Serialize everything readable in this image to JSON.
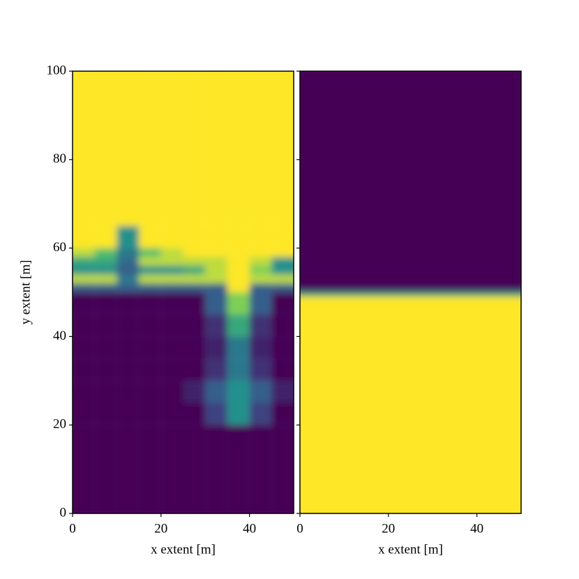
{
  "chart_data": [
    {
      "type": "heatmap",
      "xlabel": "x extent [m]",
      "ylabel": "y extent [m]",
      "xlim": [
        0,
        50
      ],
      "ylim": [
        0,
        100
      ],
      "xticks": [
        0,
        20,
        40
      ],
      "yticks": [
        0,
        20,
        40,
        60,
        80,
        100
      ],
      "ytick_labels": true,
      "clim": [
        0,
        1
      ],
      "x_edges": [
        0,
        5,
        10,
        15,
        20,
        25,
        30,
        35,
        40,
        45,
        50
      ],
      "y_edges": [
        0,
        20,
        25,
        30,
        35,
        40,
        45,
        50,
        52,
        54,
        56,
        58,
        60,
        65,
        100
      ],
      "z": [
        [
          0,
          0,
          0,
          0,
          0,
          0,
          0,
          0,
          0,
          0
        ],
        [
          0,
          0,
          0,
          0,
          0,
          0,
          0.2,
          0.5,
          0.2,
          0
        ],
        [
          0,
          0,
          0,
          0,
          0,
          0.1,
          0.3,
          0.5,
          0.3,
          0.1
        ],
        [
          0,
          0,
          0,
          0,
          0,
          0,
          0.15,
          0.4,
          0.15,
          0
        ],
        [
          0,
          0,
          0,
          0,
          0,
          0,
          0.1,
          0.4,
          0.1,
          0
        ],
        [
          0,
          0,
          0,
          0,
          0,
          0,
          0.15,
          0.6,
          0.15,
          0
        ],
        [
          0,
          0,
          0,
          0,
          0,
          0,
          0.3,
          0.8,
          0.3,
          0
        ],
        [
          0.3,
          0.3,
          0.3,
          0.3,
          0.3,
          0.3,
          0.3,
          1,
          0.3,
          0.3
        ],
        [
          0.9,
          0.9,
          0.4,
          0.9,
          0.9,
          0.9,
          0.9,
          1,
          0.9,
          0.9
        ],
        [
          0.5,
          0.5,
          0.3,
          0.5,
          0.5,
          0.6,
          0.9,
          1,
          0.8,
          0.5
        ],
        [
          0.6,
          0.6,
          0.35,
          0.9,
          0.9,
          0.9,
          0.9,
          1,
          0.9,
          0.5
        ],
        [
          0.9,
          0.7,
          0.4,
          0.7,
          0.9,
          1,
          1,
          1,
          1,
          1
        ],
        [
          1,
          1,
          0.5,
          1,
          1,
          1,
          1,
          1,
          1,
          1
        ],
        [
          1,
          1,
          1,
          1,
          1,
          1,
          1,
          1,
          1,
          1
        ]
      ]
    },
    {
      "type": "heatmap",
      "xlabel": "x extent [m]",
      "xlim": [
        0,
        50
      ],
      "ylim": [
        0,
        100
      ],
      "xticks": [
        0,
        20,
        40
      ],
      "yticks": [
        0,
        20,
        40,
        60,
        80,
        100
      ],
      "ytick_labels": false,
      "clim": [
        0,
        1
      ],
      "x_edges": [
        0,
        50
      ],
      "y_edges": [
        0,
        49,
        50,
        51,
        100
      ],
      "z": [
        [
          1
        ],
        [
          0.6
        ],
        [
          0.1
        ],
        [
          0
        ]
      ]
    }
  ]
}
